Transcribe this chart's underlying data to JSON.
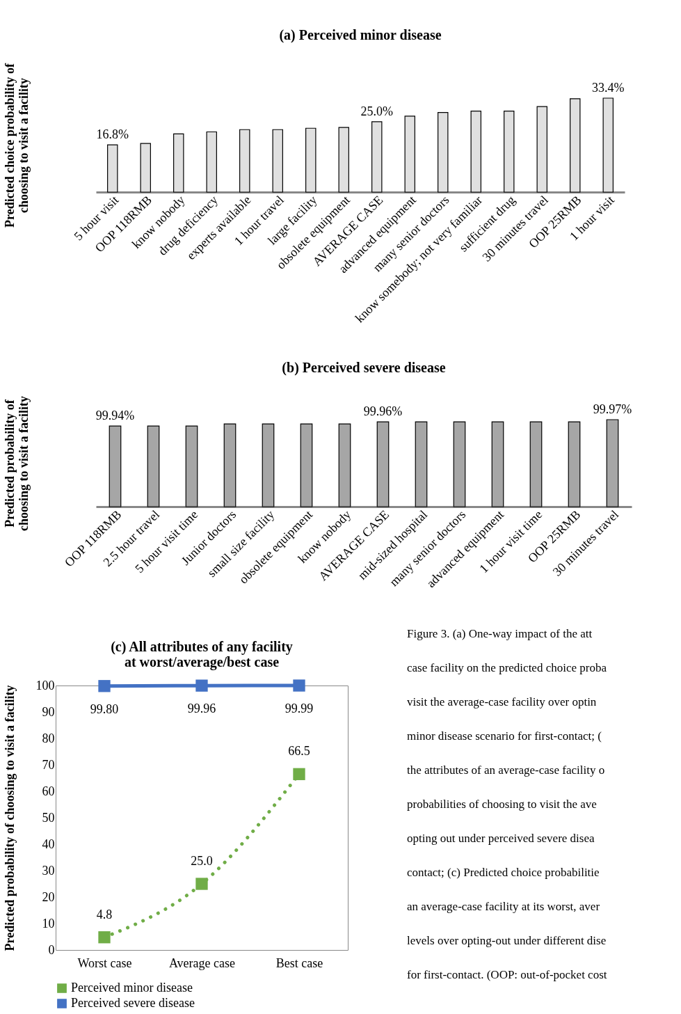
{
  "chart_data": [
    {
      "type": "bar",
      "title": "(a) Perceived minor disease",
      "ylabel": "Predicted choice probability of choosing to visit a facility",
      "categories": [
        "5 hour visit",
        "OOP 118RMB",
        "know nobody",
        "drug deficiency",
        "experts available",
        "1 hour travel",
        "large facility",
        "obsolete equipment",
        "AVERAGE CASE",
        "advanced equipment",
        "many senior doctors",
        "know somebody; not very familiar",
        "sufficient drug",
        "30 minutes travel",
        "OOP 25RMB",
        "1 hour visit"
      ],
      "values": [
        16.8,
        17.3,
        20.7,
        21.4,
        22.2,
        22.2,
        22.7,
        23.0,
        25.0,
        27.0,
        28.3,
        28.8,
        28.8,
        30.4,
        33.2,
        33.4
      ],
      "value_labels": [
        "16.8%",
        null,
        null,
        null,
        null,
        null,
        null,
        null,
        "25.0%",
        null,
        null,
        null,
        null,
        null,
        null,
        "33.4%"
      ],
      "color": "#e0e0e0",
      "tick_labels": "x",
      "grid": false
    },
    {
      "type": "bar",
      "title": "(b) Perceived severe disease",
      "ylabel": "Predicted probability of choosing to visit a facility",
      "categories": [
        "OOP 118RMB",
        "2.5 hour travel",
        "5 hour visit time",
        "Junior doctors",
        "small size facility",
        "obsolete equipment",
        "know nobody",
        "AVERAGE CASE",
        "mid-sized hospital",
        "many senior doctors",
        "advanced equipment",
        "1 hour visit time",
        "OOP 25RMB",
        "30 minutes travel"
      ],
      "values": [
        99.94,
        99.94,
        99.94,
        99.95,
        99.95,
        99.95,
        99.95,
        99.96,
        99.96,
        99.96,
        99.96,
        99.96,
        99.96,
        99.97
      ],
      "value_labels": [
        "99.94%",
        null,
        null,
        null,
        null,
        null,
        null,
        "99.96%",
        null,
        null,
        null,
        null,
        null,
        "99.97%"
      ],
      "color": "#a6a6a6",
      "ylim": [
        99.56,
        99.97
      ],
      "tick_labels": "x",
      "grid": false
    },
    {
      "type": "line",
      "title": "(c) All attributes of any facility at worst/average/best case",
      "ylabel": "Predicted probability of choosing to visit a facility",
      "categories": [
        "Worst case",
        "Average case",
        "Best case"
      ],
      "series": [
        {
          "name": "Perceived minor disease",
          "color": "#70ad47",
          "values": [
            4.8,
            25.0,
            66.5
          ],
          "value_labels": [
            "4.8",
            "25.0",
            "66.5"
          ],
          "line_style": "dotted"
        },
        {
          "name": "Perceived severe disease",
          "color": "#4472c4",
          "values": [
            99.8,
            99.96,
            99.99
          ],
          "value_labels": [
            "99.80",
            "99.96",
            "99.99"
          ],
          "line_style": "solid"
        }
      ],
      "ylim": [
        0,
        100
      ],
      "yticks": [
        0,
        10,
        20,
        30,
        40,
        50,
        60,
        70,
        80,
        90,
        100
      ],
      "marker": "square",
      "grid": false,
      "legend": "bottom",
      "annotations": [
        "Figure 3. (a) One-way impact of the att",
        "case facility on the predicted choice proba",
        "visit the average-case facility over optin",
        "minor disease scenario for first-contact; (",
        "the attributes of an average-case facility o",
        "probabilities of choosing to visit the ave",
        "opting out under perceived severe disea",
        "contact; (c) Predicted choice probabilitie",
        "an average-case facility at its worst, aver",
        "levels over opting-out under different dise",
        "for first-contact. (OOP: out-of-pocket cost"
      ]
    }
  ]
}
